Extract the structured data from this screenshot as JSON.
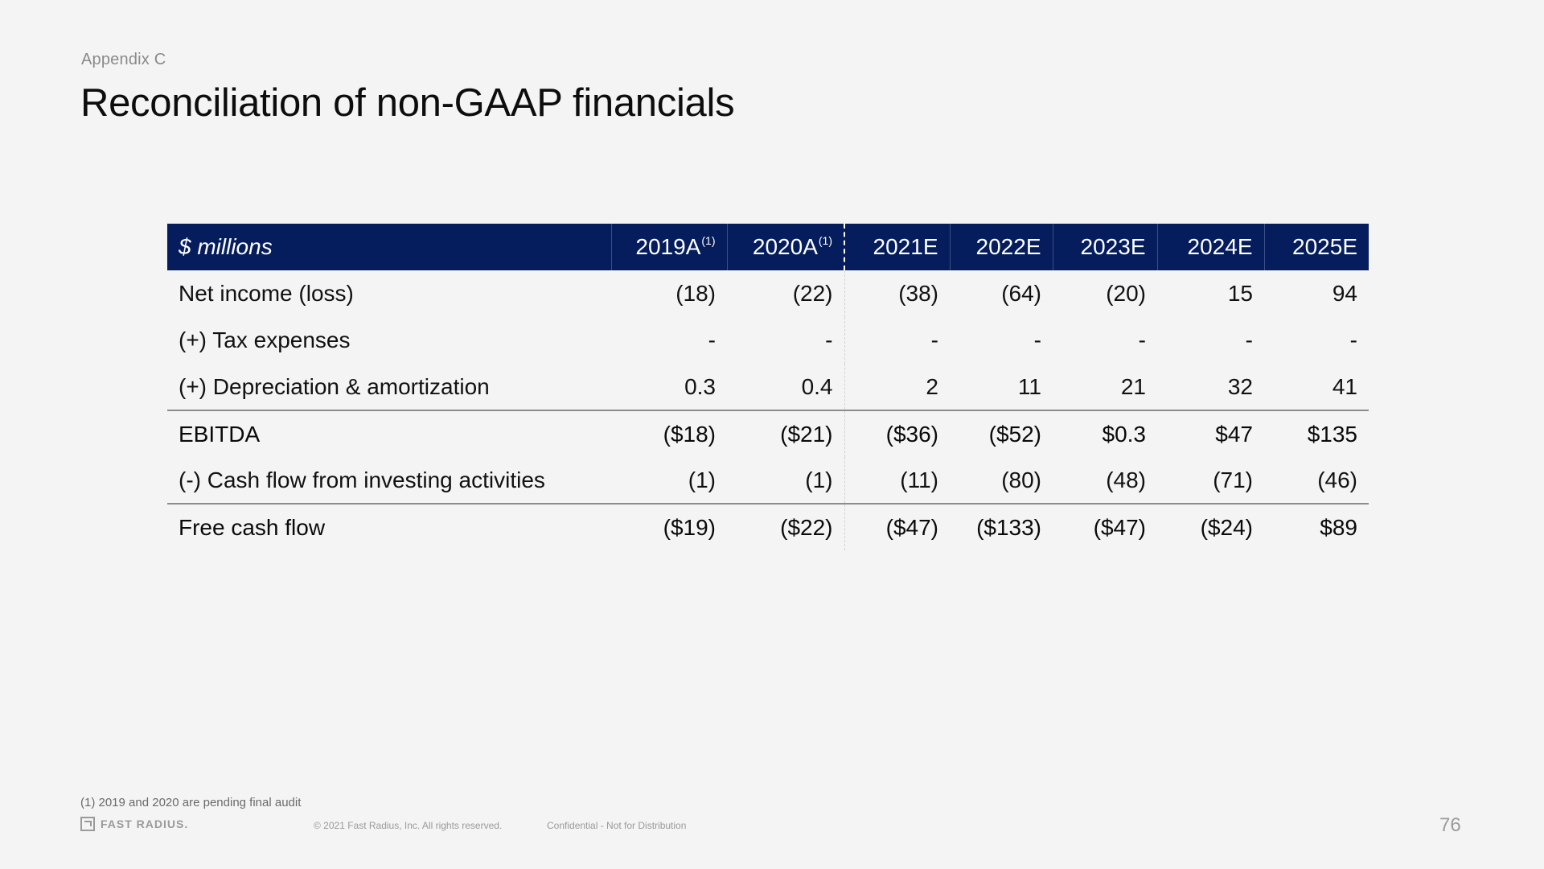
{
  "header": {
    "eyebrow": "Appendix C",
    "title": "Reconciliation of non-GAAP financials"
  },
  "table": {
    "label_header": "$ millions",
    "columns": [
      {
        "label": "2019A",
        "note": "(1)"
      },
      {
        "label": "2020A",
        "note": "(1)"
      },
      {
        "label": "2021E",
        "note": ""
      },
      {
        "label": "2022E",
        "note": ""
      },
      {
        "label": "2023E",
        "note": ""
      },
      {
        "label": "2024E",
        "note": ""
      },
      {
        "label": "2025E",
        "note": ""
      }
    ],
    "rows": [
      {
        "label": "Net income (loss)",
        "values": [
          "(18)",
          "(22)",
          "(38)",
          "(64)",
          "(20)",
          "15",
          "94"
        ]
      },
      {
        "label": "(+) Tax expenses",
        "values": [
          "-",
          "-",
          "-",
          "-",
          "-",
          "-",
          "-"
        ]
      },
      {
        "label": "(+) Depreciation & amortization",
        "values": [
          "0.3",
          "0.4",
          "2",
          "11",
          "21",
          "32",
          "41"
        ]
      },
      {
        "label": "EBITDA",
        "values": [
          "($18)",
          "($21)",
          "($36)",
          "($52)",
          "$0.3",
          "$47",
          "$135"
        ]
      },
      {
        "label": "(-) Cash flow from investing activities",
        "values": [
          "(1)",
          "(1)",
          "(11)",
          "(80)",
          "(48)",
          "(71)",
          "(46)"
        ]
      },
      {
        "label": "Free cash flow",
        "values": [
          "($19)",
          "($22)",
          "($47)",
          "($133)",
          "($47)",
          "($24)",
          "$89"
        ]
      }
    ]
  },
  "footer": {
    "footnote": "(1) 2019 and 2020 are pending  final audit",
    "logo_text": "FAST RADIUS.",
    "copyright": "© 2021 Fast Radius, Inc. All rights reserved.",
    "confidential": "Confidential - Not for Distribution",
    "page_number": "76"
  },
  "colors": {
    "header_bg": "#051d5c",
    "page_bg": "#f4f4f4"
  }
}
